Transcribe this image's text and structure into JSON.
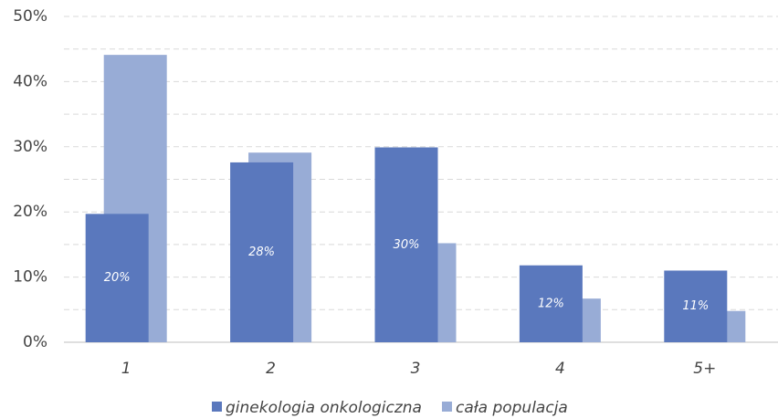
{
  "chart_data": {
    "type": "bar",
    "categories": [
      "1",
      "2",
      "3",
      "4",
      "5+"
    ],
    "series": [
      {
        "name": "ginekologia onkologiczna",
        "color": "#5a78bd",
        "values": [
          19.7,
          27.6,
          29.9,
          11.8,
          11.0
        ],
        "value_labels": [
          "20%",
          "28%",
          "30%",
          "12%",
          "11%"
        ]
      },
      {
        "name": "cała populacja",
        "color": "#98acd6",
        "values": [
          44.1,
          29.1,
          15.2,
          6.7,
          4.8
        ]
      }
    ],
    "ylim": [
      0,
      50
    ],
    "yticks": [
      {
        "value": 0,
        "label": "0%"
      },
      {
        "value": 10,
        "label": "10%"
      },
      {
        "value": 20,
        "label": "20%"
      },
      {
        "value": 30,
        "label": "30%"
      },
      {
        "value": 40,
        "label": "40%"
      },
      {
        "value": 50,
        "label": "50%"
      }
    ],
    "minor_yticks": [
      5,
      15,
      25,
      35,
      45
    ],
    "grid": true,
    "legend": "bottom"
  }
}
